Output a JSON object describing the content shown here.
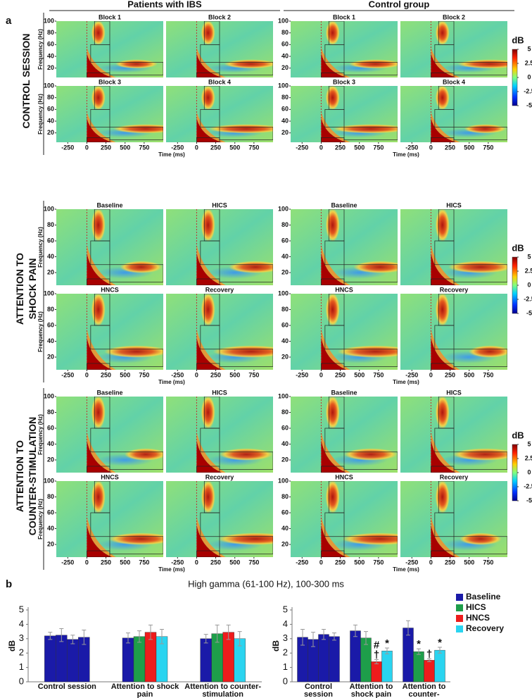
{
  "panel_a": {
    "label": "a",
    "columns": [
      "Patients with IBS",
      "Control group"
    ],
    "sections": [
      {
        "title": [
          "CONTROL SESSION"
        ],
        "conditions": [
          "Block 1",
          "Block 2",
          "Block 3",
          "Block 4"
        ]
      },
      {
        "title": [
          "ATTENTION TO",
          "SHOCK PAIN"
        ],
        "conditions": [
          "Baseline",
          "HICS",
          "HNCS",
          "Recovery"
        ]
      },
      {
        "title": [
          "ATTENTION TO",
          "COUNTER-STIMULATION"
        ],
        "conditions": [
          "Baseline",
          "HICS",
          "HNCS",
          "Recovery"
        ]
      }
    ],
    "xlabel": "Time (ms)",
    "ylabel": "Frequency (Hz)",
    "xlim": [
      -400,
      1000
    ],
    "xticks": [
      -250,
      0,
      250,
      500,
      750
    ],
    "ylim": [
      4,
      100
    ],
    "yticks": [
      20,
      40,
      60,
      80,
      100
    ],
    "colorbar": {
      "label": "dB",
      "lim": [
        -5,
        5
      ],
      "ticks": [
        5,
        2.5,
        0,
        -2.5,
        -5
      ]
    }
  },
  "panel_b": {
    "label": "b",
    "title": "High gamma (61-100 Hz), 100-300 ms",
    "legend_position": "upper right"
  },
  "chart_data": [
    {
      "type": "bar",
      "ylabel": "dB",
      "categories": [
        "Control session",
        "Attention to shock pain",
        "Attention to counter-stimulation"
      ],
      "ylim": [
        0,
        5
      ],
      "yticks": [
        0,
        1,
        2,
        3,
        4,
        5
      ],
      "first_group_color": "#1a1aa8",
      "series": [
        {
          "color": "#1a1aa8",
          "values": [
            3.2,
            3.05,
            3.0
          ],
          "errors": [
            0.25,
            0.35,
            0.3
          ]
        },
        {
          "color": "#1e9e4a",
          "values": [
            3.25,
            3.15,
            3.35
          ],
          "errors": [
            0.45,
            0.4,
            0.6
          ]
        },
        {
          "color": "#ee1c1c",
          "values": [
            2.95,
            3.45,
            3.45
          ],
          "errors": [
            0.3,
            0.5,
            0.5
          ]
        },
        {
          "color": "#2ad4f0",
          "values": [
            3.1,
            3.15,
            3.0
          ],
          "errors": [
            0.5,
            0.5,
            0.5
          ]
        }
      ]
    },
    {
      "type": "bar",
      "ylabel": "dB",
      "categories": [
        "Control session",
        "Attention to shock pain",
        "Attention to counter-stimulation"
      ],
      "ylim": [
        0,
        5
      ],
      "yticks": [
        0,
        1,
        2,
        3,
        4,
        5
      ],
      "first_group_color": "#1a1aa8",
      "series": [
        {
          "name": "Baseline",
          "color": "#1a1aa8",
          "values": [
            3.1,
            3.55,
            3.75
          ],
          "errors": [
            0.55,
            0.4,
            0.5
          ]
        },
        {
          "name": "HICS",
          "color": "#1e9e4a",
          "values": [
            2.95,
            3.05,
            2.1
          ],
          "errors": [
            0.5,
            0.45,
            0.2
          ],
          "annotations": [
            [],
            [],
            [
              "*"
            ]
          ]
        },
        {
          "name": "HNCS",
          "color": "#ee1c1c",
          "values": [
            3.3,
            1.4,
            1.5
          ],
          "errors": [
            0.35,
            0.15,
            0.1
          ],
          "annotations": [
            [],
            [
              "#",
              "†"
            ],
            [
              "†"
            ]
          ]
        },
        {
          "name": "Recovery",
          "color": "#2ad4f0",
          "values": [
            3.15,
            2.15,
            2.2
          ],
          "errors": [
            0.25,
            0.2,
            0.2
          ],
          "annotations": [
            [],
            [
              "*"
            ],
            [
              "*"
            ]
          ]
        }
      ]
    }
  ]
}
